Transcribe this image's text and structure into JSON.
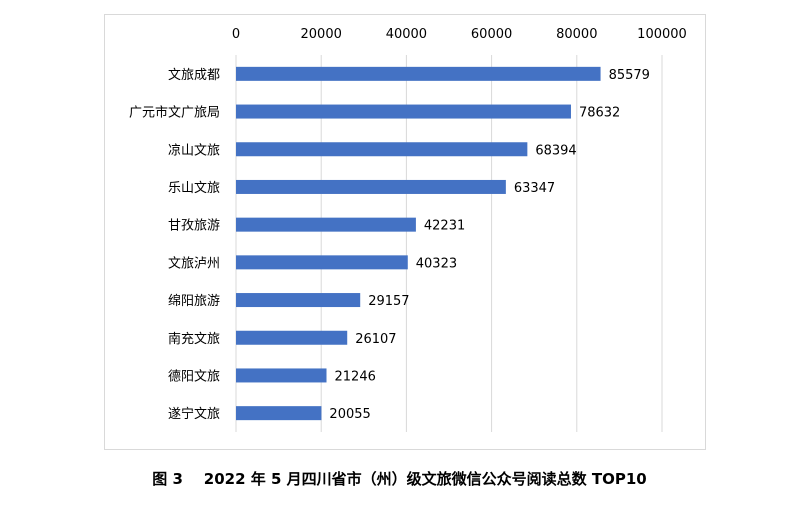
{
  "caption": "图 3    2022 年 5 月四川省市（州）级文旅微信公众号阅读总数 TOP10",
  "chart_data": {
    "type": "bar",
    "orientation": "horizontal",
    "categories": [
      "文旅成都",
      "广元市文广旅局",
      "凉山文旅",
      "乐山文旅",
      "甘孜旅游",
      "文旅泸州",
      "绵阳旅游",
      "南充文旅",
      "德阳文旅",
      "遂宁文旅"
    ],
    "values": [
      85579,
      78632,
      68394,
      63347,
      42231,
      40323,
      29157,
      26107,
      21246,
      20055
    ],
    "xlim": [
      0,
      100000
    ],
    "xticks": [
      0,
      20000,
      40000,
      60000,
      80000,
      100000
    ],
    "x_axis_position": "top",
    "grid": true,
    "legend": "none",
    "data_labels": true,
    "bar_color": "#4472c4",
    "grid_color": "#d9d9d9",
    "text_color": "#000000"
  }
}
